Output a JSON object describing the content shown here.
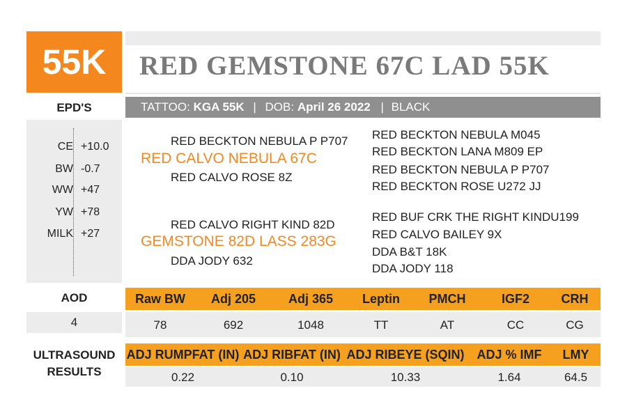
{
  "tag": "55K",
  "name": "RED GEMSTONE 67C LAD 55K",
  "info": {
    "tattoo_label": "TATTOO:",
    "tattoo_value": "KGA 55K",
    "sep1": "|",
    "dob_label": "DOB:",
    "dob_value": "April 26 2022",
    "sep2": "|",
    "color": "BLACK"
  },
  "epds": {
    "label": "EPD'S",
    "rows": [
      {
        "trait": "CE",
        "value": "+10.0"
      },
      {
        "trait": "BW",
        "value": "-0.7"
      },
      {
        "trait": "WW",
        "value": "+47"
      },
      {
        "trait": "YW",
        "value": "+78"
      },
      {
        "trait": "MILK",
        "value": "+27"
      }
    ]
  },
  "pedigree": {
    "sire": "RED CALVO NEBULA 67C",
    "sire_sire": "RED BECKTON NEBULA P P707",
    "sire_dam": "RED CALVO ROSE 8Z",
    "sire_sire_sire": "RED BECKTON NEBULA M045",
    "sire_sire_dam": "RED BECKTON LANA M809 EP",
    "sire_dam_sire": "RED BECKTON NEBULA P P707",
    "sire_dam_dam": "RED BECKTON ROSE U272 JJ",
    "dam": "GEMSTONE 82D LASS 283G",
    "dam_sire": "RED CALVO RIGHT KIND 82D",
    "dam_dam": "DDA JODY 632",
    "dam_sire_sire": "RED BUF CRK THE RIGHT KINDU199",
    "dam_sire_dam": "RED CALVO BAILEY 9X",
    "dam_dam_sire": "DDA B&T 18K",
    "dam_dam_dam": "DDA JODY 118"
  },
  "aod": {
    "label": "AOD",
    "value": "4"
  },
  "performance": {
    "headers": [
      "Raw BW",
      "Adj 205",
      "Adj 365",
      "Leptin",
      "PMCH",
      "IGF2",
      "CRH"
    ],
    "values": [
      "78",
      "692",
      "1048",
      "TT",
      "AT",
      "CC",
      "CG"
    ]
  },
  "ultrasound": {
    "label_line1": "ULTRASOUND",
    "label_line2": "RESULTS",
    "headers": [
      "ADJ RUMPFAT (IN)",
      "ADJ RIBFAT (IN)",
      "ADJ RIBEYE (SQIN)",
      "ADJ % IMF",
      "LMY"
    ],
    "values": [
      "0.22",
      "0.10",
      "10.33",
      "1.64",
      "64.5"
    ]
  },
  "colors": {
    "accent": "#f5871f",
    "header_orange": "#f5a11f",
    "info_gray": "#8f8f8f",
    "panel_gray": "#ececec"
  }
}
